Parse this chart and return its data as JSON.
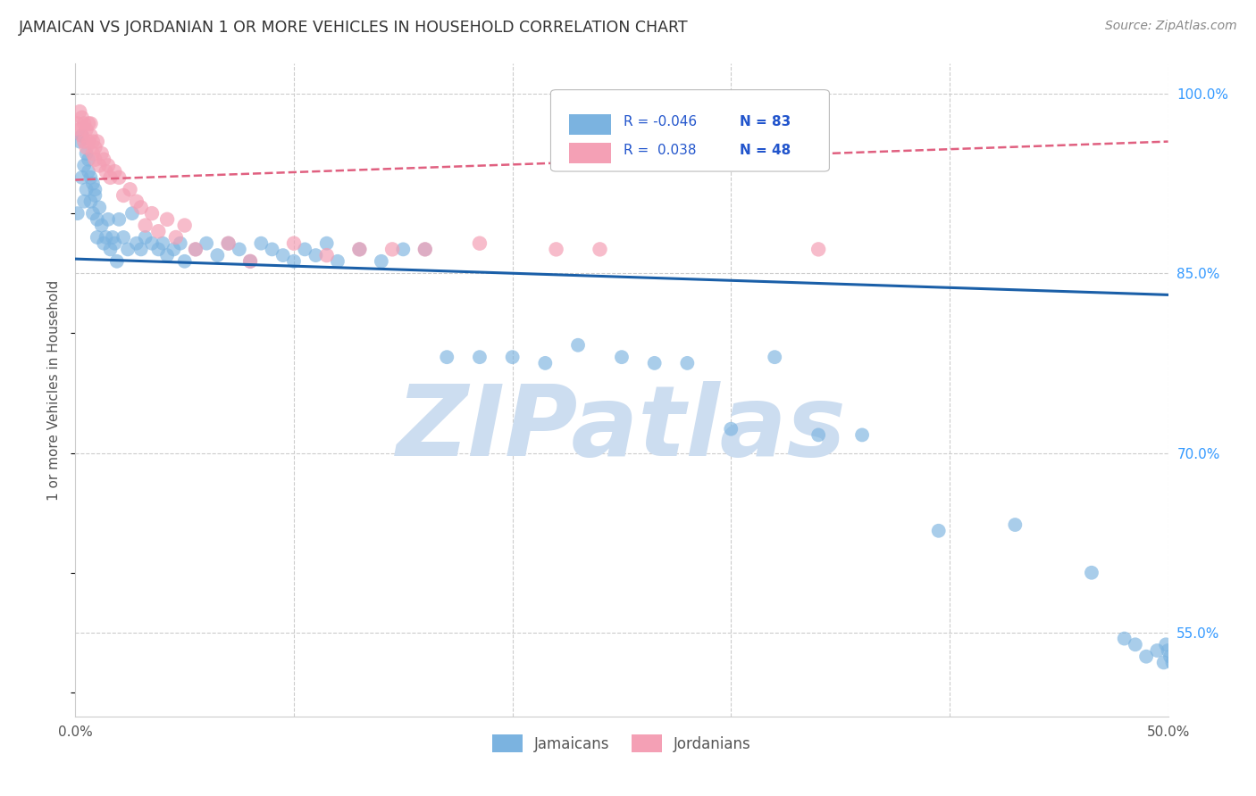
{
  "title": "JAMAICAN VS JORDANIAN 1 OR MORE VEHICLES IN HOUSEHOLD CORRELATION CHART",
  "source": "Source: ZipAtlas.com",
  "ylabel": "1 or more Vehicles in Household",
  "xmin": 0.0,
  "xmax": 0.5,
  "ymin": 0.48,
  "ymax": 1.025,
  "blue_color": "#7bb3e0",
  "pink_color": "#f4a0b5",
  "blue_line_color": "#1a5fa8",
  "pink_line_color": "#e06080",
  "R_blue": -0.046,
  "N_blue": 83,
  "R_pink": 0.038,
  "N_pink": 48,
  "blue_trend_y0": 0.862,
  "blue_trend_y1": 0.832,
  "pink_trend_y0": 0.928,
  "pink_trend_y1": 0.96,
  "watermark_text": "ZIPatlas",
  "watermark_color": "#ccddf0",
  "grid_color": "#cccccc",
  "background_color": "#ffffff",
  "blue_x": [
    0.001,
    0.002,
    0.003,
    0.003,
    0.004,
    0.004,
    0.005,
    0.005,
    0.006,
    0.006,
    0.007,
    0.007,
    0.008,
    0.008,
    0.009,
    0.009,
    0.01,
    0.01,
    0.011,
    0.012,
    0.013,
    0.014,
    0.015,
    0.016,
    0.017,
    0.018,
    0.019,
    0.02,
    0.022,
    0.024,
    0.026,
    0.028,
    0.03,
    0.032,
    0.035,
    0.038,
    0.04,
    0.042,
    0.045,
    0.048,
    0.05,
    0.055,
    0.06,
    0.065,
    0.07,
    0.075,
    0.08,
    0.085,
    0.09,
    0.095,
    0.1,
    0.105,
    0.11,
    0.115,
    0.12,
    0.13,
    0.14,
    0.15,
    0.16,
    0.17,
    0.185,
    0.2,
    0.215,
    0.23,
    0.25,
    0.265,
    0.28,
    0.3,
    0.32,
    0.34,
    0.36,
    0.395,
    0.43,
    0.465,
    0.48,
    0.485,
    0.49,
    0.495,
    0.498,
    0.499,
    0.5,
    0.501,
    0.502
  ],
  "blue_y": [
    0.9,
    0.96,
    0.93,
    0.965,
    0.94,
    0.91,
    0.92,
    0.95,
    0.935,
    0.945,
    0.91,
    0.93,
    0.925,
    0.9,
    0.915,
    0.92,
    0.895,
    0.88,
    0.905,
    0.89,
    0.875,
    0.88,
    0.895,
    0.87,
    0.88,
    0.875,
    0.86,
    0.895,
    0.88,
    0.87,
    0.9,
    0.875,
    0.87,
    0.88,
    0.875,
    0.87,
    0.875,
    0.865,
    0.87,
    0.875,
    0.86,
    0.87,
    0.875,
    0.865,
    0.875,
    0.87,
    0.86,
    0.875,
    0.87,
    0.865,
    0.86,
    0.87,
    0.865,
    0.875,
    0.86,
    0.87,
    0.86,
    0.87,
    0.87,
    0.78,
    0.78,
    0.78,
    0.775,
    0.79,
    0.78,
    0.775,
    0.775,
    0.72,
    0.78,
    0.715,
    0.715,
    0.635,
    0.64,
    0.6,
    0.545,
    0.54,
    0.53,
    0.535,
    0.525,
    0.54,
    0.535,
    0.53,
    0.525
  ],
  "pink_x": [
    0.001,
    0.002,
    0.002,
    0.003,
    0.003,
    0.004,
    0.004,
    0.005,
    0.005,
    0.006,
    0.006,
    0.007,
    0.007,
    0.008,
    0.008,
    0.009,
    0.009,
    0.01,
    0.011,
    0.012,
    0.013,
    0.014,
    0.015,
    0.016,
    0.018,
    0.02,
    0.022,
    0.025,
    0.028,
    0.03,
    0.032,
    0.035,
    0.038,
    0.042,
    0.046,
    0.05,
    0.055,
    0.07,
    0.08,
    0.1,
    0.115,
    0.13,
    0.145,
    0.16,
    0.185,
    0.22,
    0.24,
    0.34
  ],
  "pink_y": [
    0.975,
    0.985,
    0.97,
    0.98,
    0.965,
    0.975,
    0.96,
    0.97,
    0.955,
    0.975,
    0.96,
    0.965,
    0.975,
    0.95,
    0.96,
    0.945,
    0.955,
    0.96,
    0.94,
    0.95,
    0.945,
    0.935,
    0.94,
    0.93,
    0.935,
    0.93,
    0.915,
    0.92,
    0.91,
    0.905,
    0.89,
    0.9,
    0.885,
    0.895,
    0.88,
    0.89,
    0.87,
    0.875,
    0.86,
    0.875,
    0.865,
    0.87,
    0.87,
    0.87,
    0.875,
    0.87,
    0.87,
    0.87
  ]
}
